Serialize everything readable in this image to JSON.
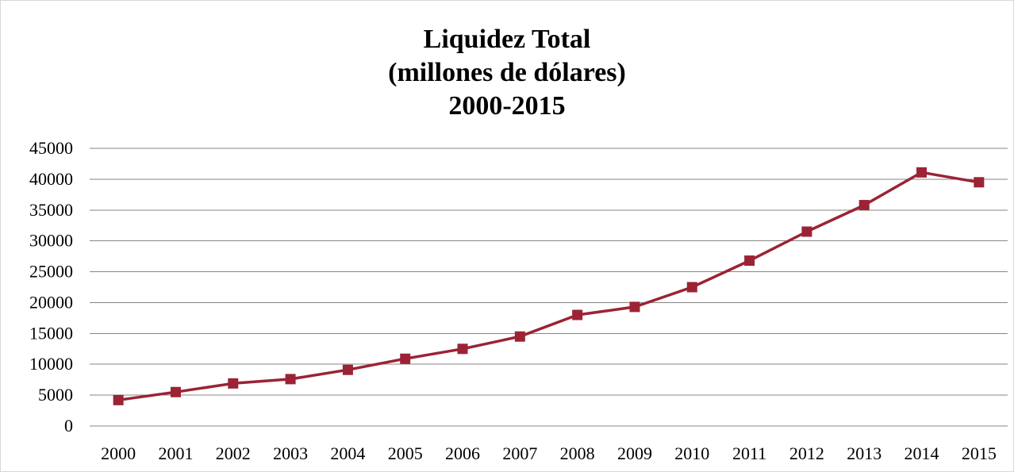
{
  "chart_data": {
    "type": "line",
    "title_lines": [
      "Liquidez Total",
      "(millones de dólares)",
      "2000-2015"
    ],
    "xlabel": "",
    "ylabel": "",
    "categories": [
      "2000",
      "2001",
      "2002",
      "2003",
      "2004",
      "2005",
      "2006",
      "2007",
      "2008",
      "2009",
      "2010",
      "2011",
      "2012",
      "2013",
      "2014",
      "2015"
    ],
    "series": [
      {
        "values": [
          4200,
          5500,
          6900,
          7600,
          9100,
          10900,
          12500,
          14500,
          18000,
          19300,
          22500,
          26800,
          31500,
          35800,
          41100,
          39500
        ],
        "color": "#9b2335",
        "marker": "square"
      }
    ],
    "ylim": [
      0,
      45000
    ],
    "yticks": [
      "0",
      "5000",
      "10000",
      "15000",
      "20000",
      "25000",
      "30000",
      "35000",
      "40000",
      "45000"
    ],
    "grid": true,
    "legend": "none"
  }
}
